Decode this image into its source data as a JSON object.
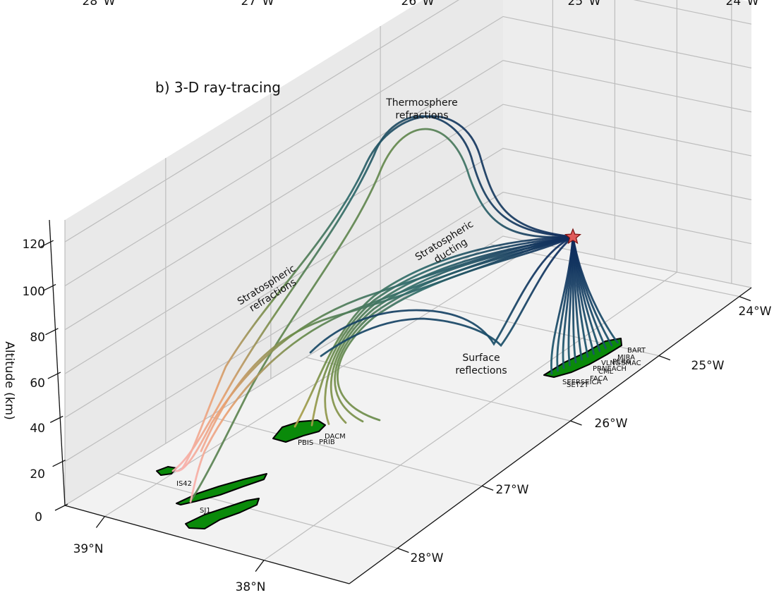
{
  "chart_data": {
    "type": "3d-line",
    "title": "b) 3-D ray-tracing",
    "zlabel": "Altitude (km)",
    "zlim": [
      0,
      130
    ],
    "z_ticks": [
      "0",
      "20",
      "40",
      "60",
      "80",
      "100",
      "120"
    ],
    "top_lon_ticks": [
      "28°W",
      "27°W",
      "26°W",
      "25°W",
      "24°W"
    ],
    "lat_ticks": [
      "39°N",
      "38°N"
    ],
    "lon_ticks": [
      "28°W",
      "27°W",
      "26°W",
      "25°W",
      "24°W"
    ],
    "grid": true,
    "colormap_low": "#0e2a5c",
    "colormap_mid": "#6b8c4a",
    "colormap_high": "#ffb6c1",
    "land_color": "#0a8a0a",
    "source_marker_color": "#e05a5a",
    "annotations": [
      "Thermosphere refractions",
      "Stratospheric ducting",
      "Stratospheric refractions",
      "Surface reflections"
    ],
    "annotation_lines": {
      "thermosphere": [
        "Thermosphere",
        "refractions"
      ],
      "ducting": [
        "Stratospheric",
        "ducting"
      ],
      "refractions": [
        "Stratospheric",
        "refractions"
      ],
      "surface": [
        "Surface",
        "reflections"
      ]
    },
    "stations": [
      "BART",
      "MIRA",
      "SMAC",
      "PERA",
      "VLNG",
      "CML",
      "PRNEACH",
      "FACA",
      "SEERSEICA",
      "SET2T",
      "IS42",
      "SJ1",
      "PBIS",
      "PRIB",
      "DACM"
    ],
    "source": {
      "label": "explosion source",
      "z": 115
    },
    "ray_groups": [
      {
        "name": "thermosphere",
        "max_z": 118
      },
      {
        "name": "stratospheric-ducting",
        "max_z": 55
      },
      {
        "name": "stratospheric-refractions",
        "max_z": 50
      },
      {
        "name": "surface",
        "max_z": 15
      }
    ]
  }
}
